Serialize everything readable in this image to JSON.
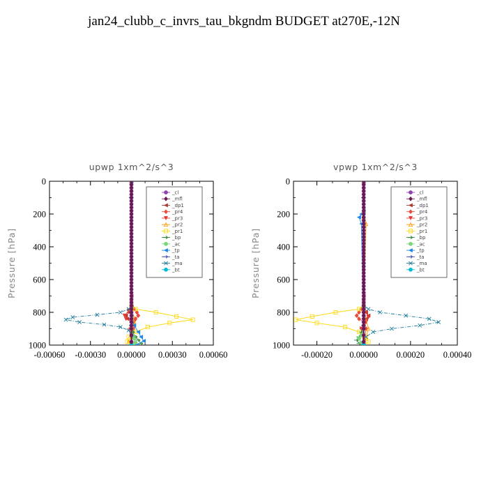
{
  "title": "jan24_clubb_c_invrs_tau_bkgndm  BUDGET at270E,-12N",
  "chart_data": [
    {
      "type": "line",
      "title": "upwp   1xm^2/s^3",
      "xlabel": "",
      "ylabel": "Pressure [hPa]",
      "xlim": [
        -0.0006,
        0.0006
      ],
      "ylim": [
        1000,
        0
      ],
      "xticks": [
        "-0.00060",
        "-0.00030",
        "0.00000",
        "0.00030",
        "0.00060"
      ],
      "yticks": [
        "0",
        "200",
        "400",
        "600",
        "800",
        "1000"
      ],
      "legend_position": "top-right",
      "series": [
        {
          "name": "_cl",
          "color": "#8e44ad",
          "marker": "circle",
          "x": [
            0,
            0,
            0,
            0,
            0,
            0,
            0,
            0,
            0,
            0,
            0,
            0,
            0,
            0,
            0,
            0,
            0,
            0,
            0,
            0,
            0,
            0,
            0,
            0,
            0,
            0,
            0,
            0,
            0,
            0,
            0,
            0,
            0,
            0,
            0,
            0,
            0,
            0,
            0,
            0,
            0,
            0,
            0,
            0,
            0,
            0,
            0,
            0
          ],
          "y": [
            0,
            20,
            40,
            60,
            80,
            100,
            120,
            140,
            160,
            180,
            200,
            220,
            240,
            260,
            280,
            300,
            320,
            340,
            360,
            380,
            400,
            420,
            440,
            460,
            480,
            500,
            520,
            540,
            560,
            580,
            600,
            620,
            640,
            660,
            680,
            700,
            720,
            740,
            760,
            780,
            800,
            820,
            840,
            860,
            880,
            900,
            940,
            980
          ]
        },
        {
          "name": "_mfl",
          "color": "#6a1b4d",
          "marker": "diamond",
          "x": [
            0,
            0,
            0,
            0,
            0,
            0,
            0,
            0,
            0,
            0,
            0,
            0,
            0,
            0,
            0,
            0,
            0,
            0,
            0,
            0,
            0,
            0,
            0,
            0,
            0,
            0,
            0,
            0,
            0,
            0,
            0,
            0,
            0,
            0,
            0,
            0,
            0,
            0,
            0,
            0,
            0,
            0,
            0,
            0,
            0,
            0,
            0,
            0
          ],
          "y": [
            0,
            20,
            40,
            60,
            80,
            100,
            120,
            140,
            160,
            180,
            200,
            220,
            240,
            260,
            280,
            300,
            320,
            340,
            360,
            380,
            400,
            420,
            440,
            460,
            480,
            500,
            520,
            540,
            560,
            580,
            600,
            620,
            640,
            660,
            680,
            700,
            720,
            740,
            760,
            780,
            800,
            820,
            840,
            860,
            880,
            900,
            940,
            980
          ]
        },
        {
          "name": "_dp1",
          "color": "#b03a2e",
          "marker": "triangle-left",
          "x": [
            0,
            0,
            0,
            -2e-05,
            -4e-05,
            -3e-05,
            0,
            1e-05,
            0
          ],
          "y": [
            0,
            700,
            780,
            800,
            820,
            840,
            860,
            900,
            1000
          ]
        },
        {
          "name": "_pr4",
          "color": "#e74c3c",
          "marker": "diamond",
          "x": [
            0,
            0,
            2e-05,
            4e-05,
            5e-05,
            3e-05,
            0,
            -1e-05,
            0
          ],
          "y": [
            0,
            700,
            780,
            800,
            820,
            840,
            860,
            900,
            1000
          ]
        },
        {
          "name": "_pr3",
          "color": "#e53935",
          "marker": "triangle-down",
          "x": [
            0,
            0,
            -2e-05,
            -5e-05,
            -4e-05,
            2e-05,
            1e-05,
            0
          ],
          "y": [
            0,
            740,
            790,
            820,
            840,
            860,
            900,
            1000
          ]
        },
        {
          "name": "_pr2",
          "color": "#ff9800",
          "marker": "triangle-up",
          "x": [
            0,
            0,
            1e-05,
            2e-05,
            1e-05,
            0,
            -2e-05,
            0
          ],
          "y": [
            0,
            780,
            820,
            860,
            900,
            940,
            980,
            1000
          ]
        },
        {
          "name": "_pr1",
          "color": "#ffd600",
          "marker": "square",
          "x": [
            0,
            0,
            3e-05,
            0.00018,
            0.00033,
            0.00045,
            0.00028,
            0.00012,
            3e-05,
            -2e-05,
            -3e-05,
            0
          ],
          "y": [
            0,
            760,
            780,
            800,
            825,
            845,
            865,
            890,
            920,
            950,
            980,
            1000
          ]
        },
        {
          "name": "_bp",
          "color": "#2e7d32",
          "marker": "arrow",
          "x": [
            0,
            0,
            1e-05,
            3e-05,
            5e-05,
            7e-05,
            2e-05
          ],
          "y": [
            0,
            880,
            920,
            950,
            970,
            990,
            1000
          ]
        },
        {
          "name": "_ac",
          "color": "#7bd67b",
          "marker": "circle",
          "x": [
            0,
            0,
            1e-05,
            2e-05,
            3e-05,
            0
          ],
          "y": [
            0,
            900,
            940,
            960,
            985,
            1000
          ]
        },
        {
          "name": "_tp",
          "color": "#1e88e5",
          "marker": "triangle-left",
          "x": [
            0,
            0,
            2e-05,
            5e-05,
            7e-05,
            9e-05,
            4e-05
          ],
          "y": [
            0,
            820,
            880,
            920,
            950,
            975,
            1000
          ]
        },
        {
          "name": "_ta",
          "color": "#3949ab",
          "marker": "arrow",
          "x": [
            0,
            0,
            0,
            0
          ],
          "y": [
            0,
            100,
            500,
            1000
          ]
        },
        {
          "name": "_ma",
          "color": "#1a7a9a",
          "marker": "x",
          "x": [
            0,
            0,
            -2e-05,
            -8e-05,
            -0.00025,
            -0.00043,
            -0.00048,
            -0.00038,
            -0.0002,
            -8e-05,
            -2e-05,
            0,
            0
          ],
          "y": [
            0,
            760,
            780,
            800,
            815,
            830,
            845,
            860,
            875,
            890,
            910,
            940,
            1000
          ]
        },
        {
          "name": "_bt",
          "color": "#00bcd4",
          "marker": "circle",
          "x": [
            0,
            0,
            0,
            0
          ],
          "y": [
            0,
            100,
            500,
            1000
          ]
        }
      ]
    },
    {
      "type": "line",
      "title": "vpwp   1xm^2/s^3",
      "xlabel": "",
      "ylabel": "Pressure [hPa]",
      "xlim": [
        -0.0003,
        0.0004
      ],
      "ylim": [
        1000,
        0
      ],
      "xticks": [
        "-0.00020",
        "0.00000",
        "0.00020",
        "0.00040"
      ],
      "yticks": [
        "0",
        "200",
        "400",
        "600",
        "800",
        "1000"
      ],
      "legend_position": "top-right",
      "series": [
        {
          "name": "_cl",
          "color": "#8e44ad",
          "marker": "circle",
          "x": [
            0,
            0,
            0,
            0,
            0,
            0,
            0,
            0,
            0,
            0,
            0,
            0,
            0,
            0,
            0,
            0,
            0,
            0,
            0,
            0,
            0,
            0,
            0,
            0,
            0,
            0,
            0,
            0,
            0,
            0,
            0,
            0,
            0,
            0,
            0,
            0,
            0,
            0,
            0,
            0,
            0,
            0,
            0,
            0,
            0,
            0,
            0,
            0
          ],
          "y": [
            0,
            20,
            40,
            60,
            80,
            100,
            120,
            140,
            160,
            180,
            200,
            220,
            240,
            260,
            280,
            300,
            320,
            340,
            360,
            380,
            400,
            420,
            440,
            460,
            480,
            500,
            520,
            540,
            560,
            580,
            600,
            620,
            640,
            660,
            680,
            700,
            720,
            740,
            760,
            780,
            800,
            820,
            840,
            860,
            880,
            900,
            940,
            980
          ]
        },
        {
          "name": "_mfl",
          "color": "#6a1b4d",
          "marker": "diamond",
          "x": [
            0,
            0,
            0,
            0,
            0,
            0,
            0,
            0,
            0,
            0,
            0,
            0,
            0,
            0,
            0,
            0,
            0,
            0,
            0,
            0,
            0,
            0,
            0,
            0,
            0,
            0,
            0,
            0,
            0,
            0,
            0,
            0,
            0,
            0,
            0,
            0,
            0,
            0,
            0,
            0,
            0,
            0,
            0,
            0,
            0,
            0,
            0,
            0
          ],
          "y": [
            0,
            20,
            40,
            60,
            80,
            100,
            120,
            140,
            160,
            180,
            200,
            220,
            240,
            260,
            280,
            300,
            320,
            340,
            360,
            380,
            400,
            420,
            440,
            460,
            480,
            500,
            520,
            540,
            560,
            580,
            600,
            620,
            640,
            660,
            680,
            700,
            720,
            740,
            760,
            780,
            800,
            820,
            840,
            860,
            880,
            900,
            940,
            980
          ]
        },
        {
          "name": "_dp1",
          "color": "#b03a2e",
          "marker": "triangle-left",
          "x": [
            0,
            0,
            0,
            1e-05,
            2e-05,
            1e-05,
            0,
            -1e-05,
            0
          ],
          "y": [
            0,
            700,
            780,
            800,
            820,
            840,
            860,
            900,
            1000
          ]
        },
        {
          "name": "_pr4",
          "color": "#e74c3c",
          "marker": "diamond",
          "x": [
            0,
            0,
            -1e-05,
            -2e-05,
            -3e-05,
            -2e-05,
            0,
            1e-05,
            0
          ],
          "y": [
            0,
            700,
            780,
            800,
            820,
            840,
            860,
            900,
            1000
          ]
        },
        {
          "name": "_pr3",
          "color": "#e53935",
          "marker": "triangle-down",
          "x": [
            0,
            0,
            1e-05,
            2e-05,
            1e-05,
            -1e-05,
            0
          ],
          "y": [
            0,
            740,
            800,
            830,
            860,
            900,
            1000
          ]
        },
        {
          "name": "_pr2",
          "color": "#ff9800",
          "marker": "triangle-up",
          "x": [
            0,
            0,
            0,
            1e-05,
            0,
            2e-05,
            1e-05,
            0
          ],
          "y": [
            0,
            180,
            220,
            260,
            780,
            900,
            960,
            1000
          ]
        },
        {
          "name": "_pr1",
          "color": "#ffd600",
          "marker": "square",
          "x": [
            0,
            0,
            -2e-05,
            -0.00012,
            -0.00022,
            -0.00029,
            -0.0002,
            -8e-05,
            -2e-05,
            1e-05,
            2e-05,
            0
          ],
          "y": [
            0,
            760,
            780,
            800,
            825,
            845,
            865,
            890,
            920,
            950,
            980,
            1000
          ]
        },
        {
          "name": "_bp",
          "color": "#2e7d32",
          "marker": "arrow",
          "x": [
            0,
            0,
            -1e-05,
            -2e-05,
            -3e-05,
            -2e-05,
            0
          ],
          "y": [
            0,
            880,
            920,
            950,
            970,
            990,
            1000
          ]
        },
        {
          "name": "_ac",
          "color": "#7bd67b",
          "marker": "circle",
          "x": [
            0,
            0,
            -1e-05,
            -2e-05,
            -1e-05,
            0
          ],
          "y": [
            0,
            900,
            940,
            960,
            985,
            1000
          ]
        },
        {
          "name": "_tp",
          "color": "#1e88e5",
          "marker": "triangle-left",
          "x": [
            0,
            0,
            -1e-05,
            -2e-05,
            -1e-05,
            0
          ],
          "y": [
            0,
            180,
            200,
            220,
            260,
            1000
          ]
        },
        {
          "name": "_ta",
          "color": "#3949ab",
          "marker": "arrow",
          "x": [
            0,
            0,
            0,
            0
          ],
          "y": [
            0,
            100,
            500,
            1000
          ]
        },
        {
          "name": "_ma",
          "color": "#1a7a9a",
          "marker": "x",
          "x": [
            0,
            0,
            2e-05,
            7e-05,
            0.00018,
            0.00028,
            0.00032,
            0.00024,
            0.00012,
            4e-05,
            1e-05,
            0
          ],
          "y": [
            0,
            760,
            780,
            800,
            820,
            840,
            860,
            880,
            900,
            920,
            950,
            1000
          ]
        },
        {
          "name": "_bt",
          "color": "#00bcd4",
          "marker": "circle",
          "x": [
            0,
            0,
            0,
            0
          ],
          "y": [
            0,
            100,
            500,
            1000
          ]
        }
      ]
    }
  ]
}
